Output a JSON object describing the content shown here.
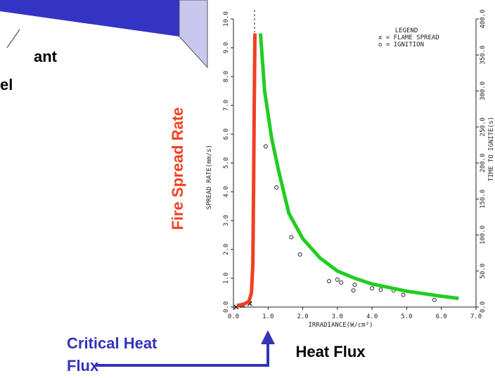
{
  "chart_data": {
    "type": "line",
    "xlabel": "IRRADIANCE(W/cm²)",
    "ylabel": "SPREAD RATE(mm/s)",
    "y2label": "TIME TO IGNITE(s)",
    "legend_title": "LEGEND",
    "legend_position": "upper right",
    "xlim": [
      0,
      7
    ],
    "xticks": [
      {
        "value": 0,
        "label": "0.0"
      },
      {
        "value": 1,
        "label": "1.0"
      },
      {
        "value": 2,
        "label": "2.0"
      },
      {
        "value": 3,
        "label": "3.0"
      },
      {
        "value": 4,
        "label": "4.0"
      },
      {
        "value": 5,
        "label": "5.0"
      },
      {
        "value": 6,
        "label": "6.0"
      },
      {
        "value": 7,
        "label": "7.0"
      }
    ],
    "ylim": [
      0,
      10
    ],
    "yticks": [
      {
        "value": 0,
        "label": "0.0"
      },
      {
        "value": 1,
        "label": "1.0"
      },
      {
        "value": 2,
        "label": "2.0"
      },
      {
        "value": 3,
        "label": "3.0"
      },
      {
        "value": 4,
        "label": "4.0"
      },
      {
        "value": 5,
        "label": "5.0"
      },
      {
        "value": 6,
        "label": "6.0"
      },
      {
        "value": 7,
        "label": "7.0"
      },
      {
        "value": 8,
        "label": "8.0"
      },
      {
        "value": 9,
        "label": "9.0"
      },
      {
        "value": 10,
        "label": "10.0"
      }
    ],
    "y2lim": [
      0,
      400
    ],
    "y2ticks": [
      {
        "value": 0,
        "label": "0.0"
      },
      {
        "value": 50,
        "label": "50.0"
      },
      {
        "value": 100,
        "label": "100.0"
      },
      {
        "value": 150,
        "label": "150.0"
      },
      {
        "value": 200,
        "label": "200.0"
      },
      {
        "value": 250,
        "label": "250.0"
      },
      {
        "value": 300,
        "label": "300.0"
      },
      {
        "value": 350,
        "label": "350.0"
      },
      {
        "value": 400,
        "label": "400.0"
      }
    ],
    "series": [
      {
        "name": "x = FLAME SPREAD",
        "marker": "x",
        "color": "#222222",
        "x": [
          0.08,
          0.27,
          0.47
        ],
        "values": [
          0.0,
          0.05,
          0.12
        ]
      },
      {
        "name": "o = IGNITION",
        "marker": "o",
        "axis": "y2",
        "color": "#222222",
        "x": [
          0.93,
          1.24,
          1.67,
          1.92,
          2.76,
          3.0,
          3.11,
          3.46,
          3.5,
          4.0,
          4.25,
          4.62,
          4.9,
          5.8
        ],
        "values": [
          223,
          166,
          97,
          73,
          36,
          38,
          34,
          23,
          31,
          26,
          24,
          23,
          17,
          10
        ]
      },
      {
        "marker": "line",
        "color": "#f04020",
        "x": [
          0.1,
          0.3,
          0.45,
          0.52,
          0.56,
          0.58,
          0.6,
          0.62
        ],
        "values": [
          0.05,
          0.1,
          0.2,
          0.5,
          1.5,
          4,
          7,
          9.5
        ]
      },
      {
        "marker": "line",
        "axis": "y2",
        "color": "#22cc22",
        "x": [
          0.78,
          0.9,
          1.1,
          1.3,
          1.6,
          2.0,
          2.5,
          3.0,
          3.5,
          4.0,
          5.0,
          6.0,
          6.5
        ],
        "values": [
          380,
          300,
          235,
          190,
          130,
          95,
          68,
          50,
          40,
          32,
          22,
          15,
          12
        ]
      }
    ]
  },
  "slide": {
    "left_fragment": [
      "ant",
      "el"
    ],
    "side_label": "Fire Spread Rate",
    "bottom_label": "Heat Flux",
    "critical_label": [
      "Critical Heat",
      "Flux"
    ]
  }
}
